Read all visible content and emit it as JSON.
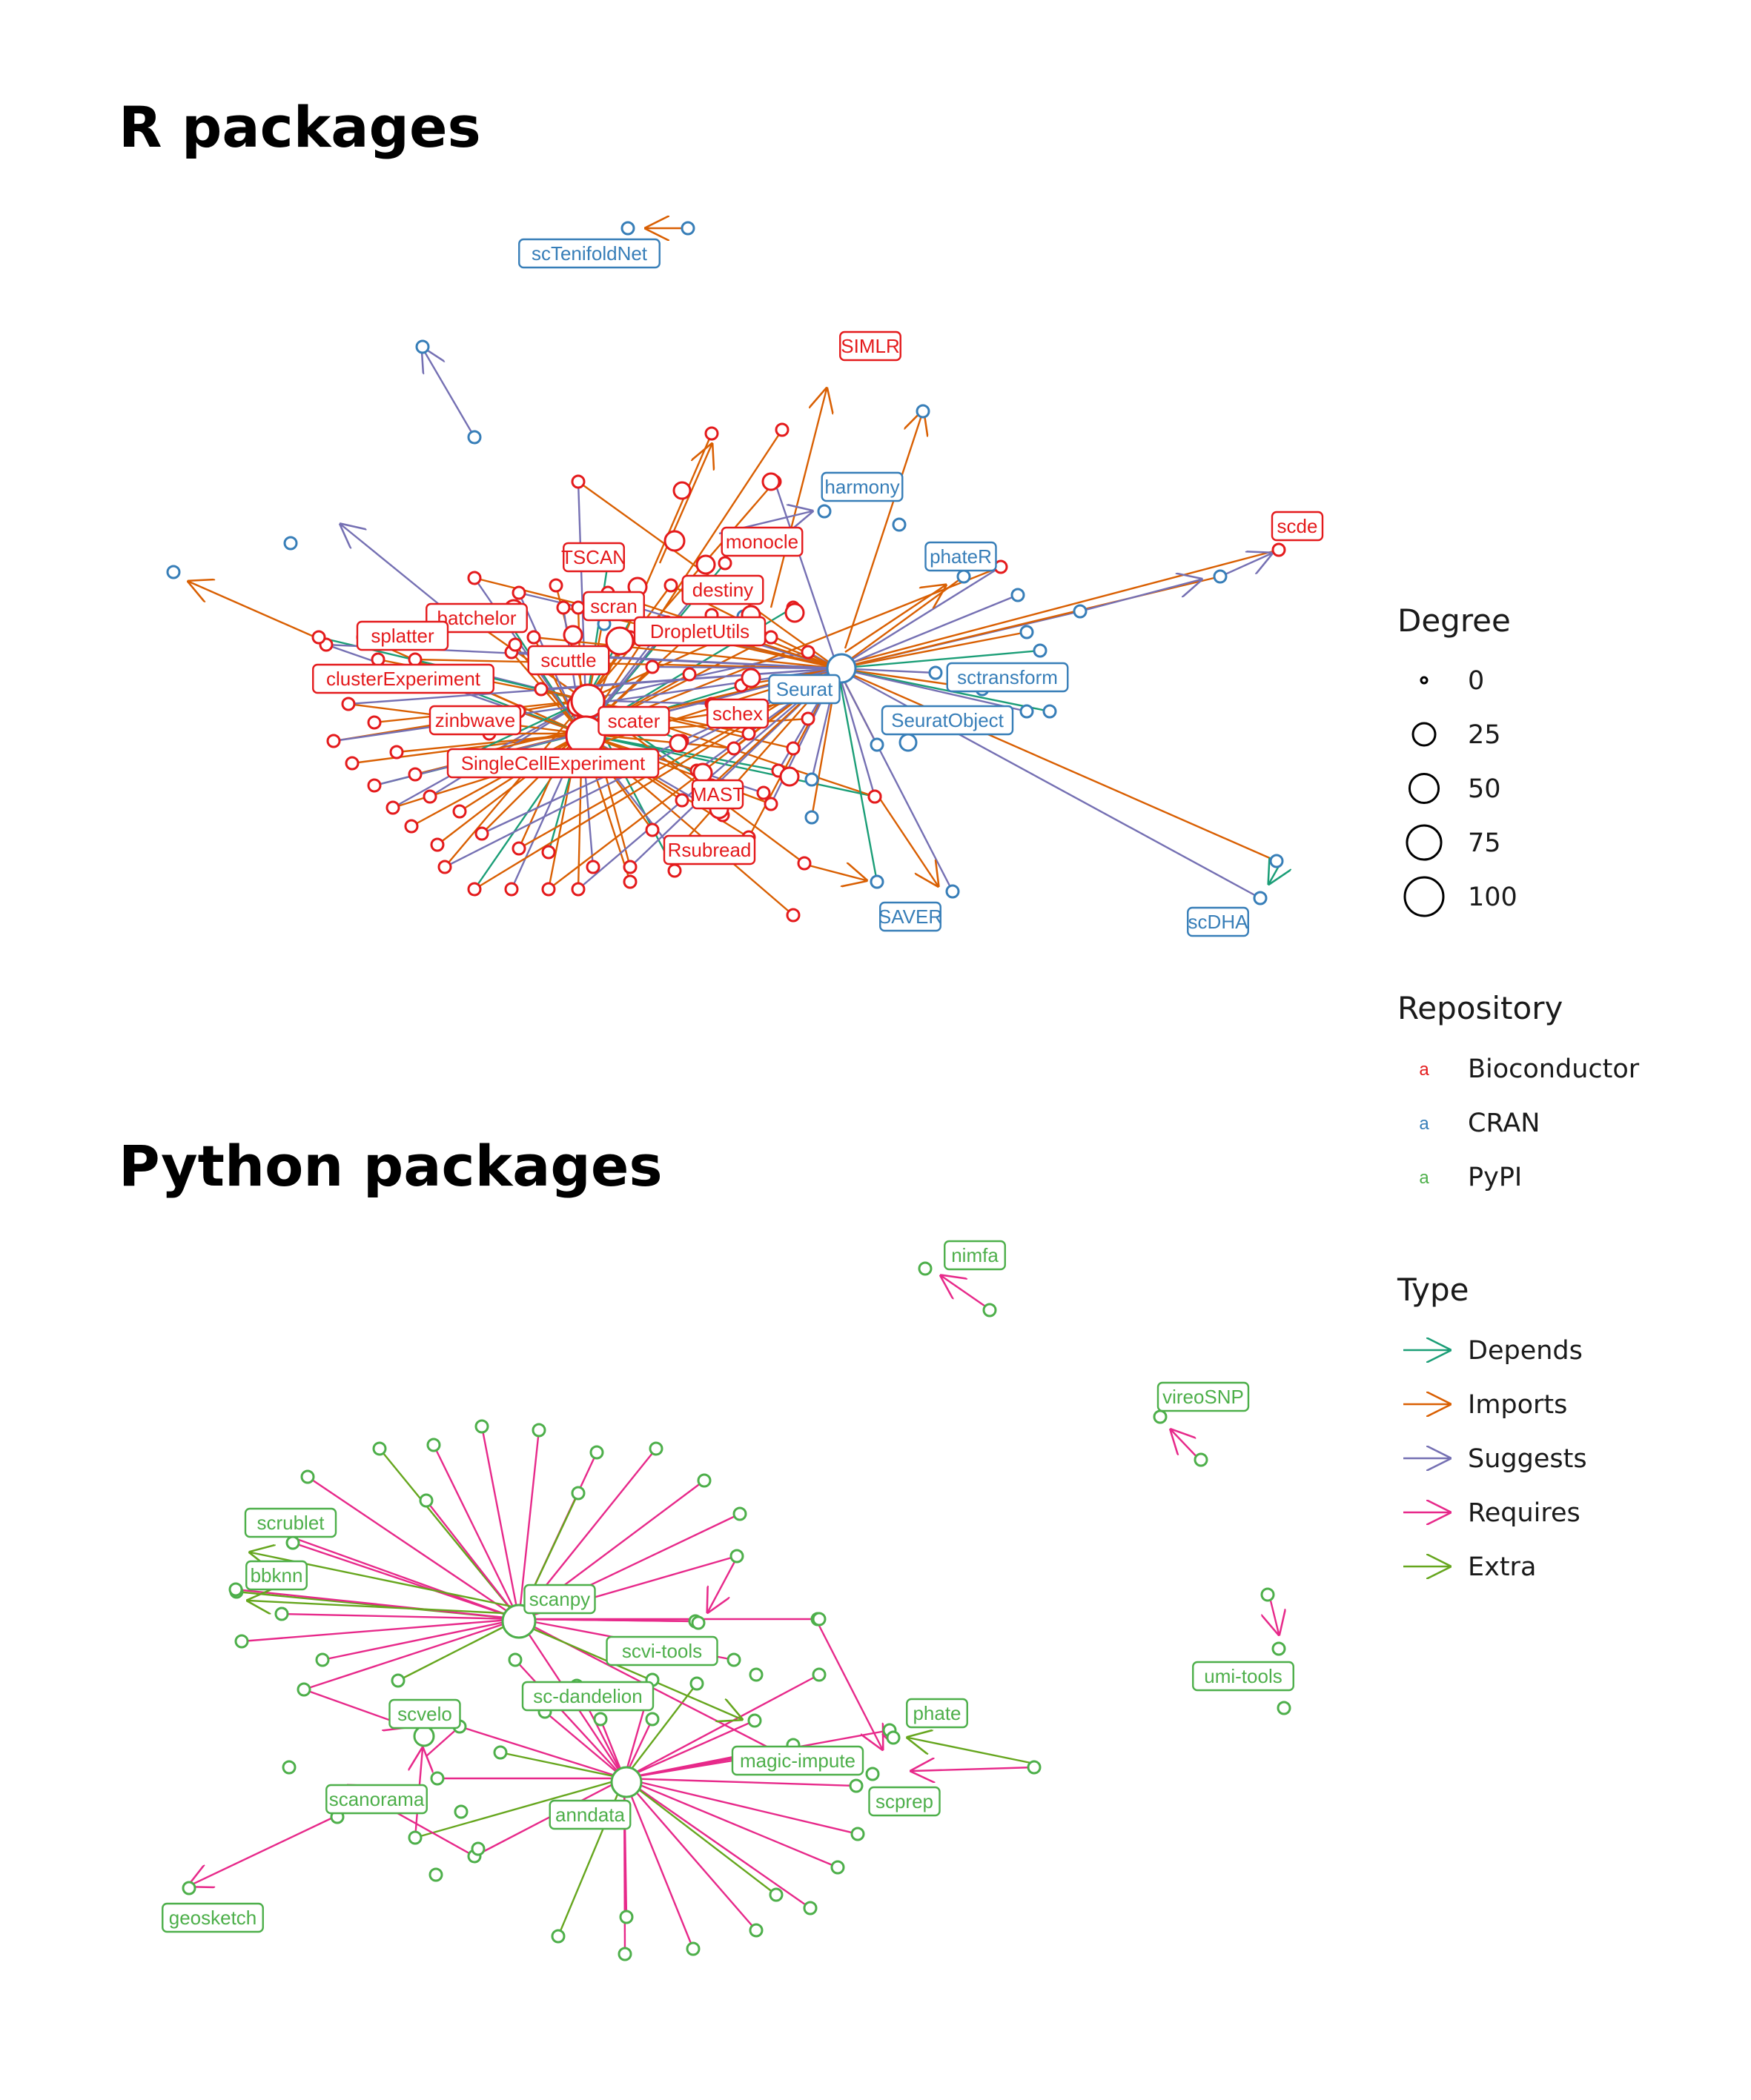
{
  "titles": {
    "r": "R packages",
    "python": "Python packages"
  },
  "colors": {
    "Bioconductor": "#e41a1c",
    "CRAN": "#377eb8",
    "PyPI": "#4daf4a",
    "Depends": "#1b9e77",
    "Imports": "#d95f02",
    "Suggests": "#7570b3",
    "Requires": "#e7298a",
    "Extra": "#66a61e"
  },
  "legend": {
    "degree": {
      "title": "Degree",
      "items": [
        "0",
        "25",
        "50",
        "75",
        "100"
      ],
      "values": [
        0,
        25,
        50,
        75,
        100
      ]
    },
    "repository": {
      "title": "Repository",
      "glyph": "a",
      "items": [
        "Bioconductor",
        "CRAN",
        "PyPI"
      ]
    },
    "type": {
      "title": "Type",
      "items": [
        "Depends",
        "Imports",
        "Suggests",
        "Requires",
        "Extra"
      ]
    }
  },
  "r_labels": [
    {
      "text": "scTenifoldNet",
      "repo": "CRAN"
    },
    {
      "text": "SIMLR",
      "repo": "Bioconductor"
    },
    {
      "text": "harmony",
      "repo": "CRAN"
    },
    {
      "text": "scde",
      "repo": "Bioconductor"
    },
    {
      "text": "monocle",
      "repo": "Bioconductor"
    },
    {
      "text": "TSCAN",
      "repo": "Bioconductor"
    },
    {
      "text": "phateR",
      "repo": "CRAN"
    },
    {
      "text": "destiny",
      "repo": "Bioconductor"
    },
    {
      "text": "scran",
      "repo": "Bioconductor"
    },
    {
      "text": "batchelor",
      "repo": "Bioconductor"
    },
    {
      "text": "DropletUtils",
      "repo": "Bioconductor"
    },
    {
      "text": "splatter",
      "repo": "Bioconductor"
    },
    {
      "text": "scuttle",
      "repo": "Bioconductor"
    },
    {
      "text": "clusterExperiment",
      "repo": "Bioconductor"
    },
    {
      "text": "sctransform",
      "repo": "CRAN"
    },
    {
      "text": "Seurat",
      "repo": "CRAN"
    },
    {
      "text": "schex",
      "repo": "Bioconductor"
    },
    {
      "text": "zinbwave",
      "repo": "Bioconductor"
    },
    {
      "text": "scater",
      "repo": "Bioconductor"
    },
    {
      "text": "SeuratObject",
      "repo": "CRAN"
    },
    {
      "text": "SingleCellExperiment",
      "repo": "Bioconductor"
    },
    {
      "text": "MAST",
      "repo": "Bioconductor"
    },
    {
      "text": "Rsubread",
      "repo": "Bioconductor"
    },
    {
      "text": "SAVER",
      "repo": "CRAN"
    },
    {
      "text": "scDHA",
      "repo": "CRAN"
    }
  ],
  "py_labels": [
    {
      "text": "nimfa"
    },
    {
      "text": "vireoSNP"
    },
    {
      "text": "scrublet"
    },
    {
      "text": "bbknn"
    },
    {
      "text": "scanpy"
    },
    {
      "text": "scvi-tools"
    },
    {
      "text": "umi-tools"
    },
    {
      "text": "sc-dandelion"
    },
    {
      "text": "scvelo"
    },
    {
      "text": "phate"
    },
    {
      "text": "magic-impute"
    },
    {
      "text": "scanorama"
    },
    {
      "text": "scprep"
    },
    {
      "text": "anndata"
    },
    {
      "text": "geosketch"
    }
  ]
}
